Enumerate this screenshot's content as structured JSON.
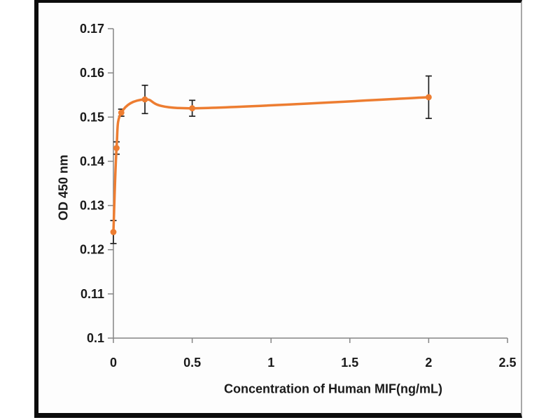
{
  "figure": {
    "frame_border_color": "#0c0c0c",
    "background_color": "#ffffff"
  },
  "chart_data": {
    "type": "line",
    "title": "",
    "xlabel": "Concentration of Human MIF(ng/mL)",
    "ylabel": "OD 450 nm",
    "xlim": [
      0,
      2.5
    ],
    "ylim": [
      0.1,
      0.17
    ],
    "x_tick_values": [
      0,
      0.5,
      1,
      1.5,
      2,
      2.5
    ],
    "x_tick_labels": [
      "0",
      "0.5",
      "1",
      "1.5",
      "2",
      "2.5"
    ],
    "y_tick_values": [
      0.1,
      0.11,
      0.12,
      0.13,
      0.14,
      0.15,
      0.16,
      0.17
    ],
    "y_tick_labels": [
      "0.1",
      "0.11",
      "0.12",
      "0.13",
      "0.14",
      "0.15",
      "0.16",
      "0.17"
    ],
    "grid": false,
    "legend": false,
    "axis_color": "#858585",
    "text_color": "#1a1a1a",
    "series": [
      {
        "color": "#ED7D31",
        "marker": "circle",
        "line_style": "smooth",
        "x": [
          0,
          0.02,
          0.05,
          0.2,
          0.5,
          2
        ],
        "y": [
          0.124,
          0.143,
          0.151,
          0.154,
          0.152,
          0.1545
        ],
        "y_err": [
          0.0026,
          0.0014,
          0.0008,
          0.0032,
          0.0018,
          0.0048
        ],
        "error_bar_color": "#1f1f1f"
      }
    ]
  }
}
